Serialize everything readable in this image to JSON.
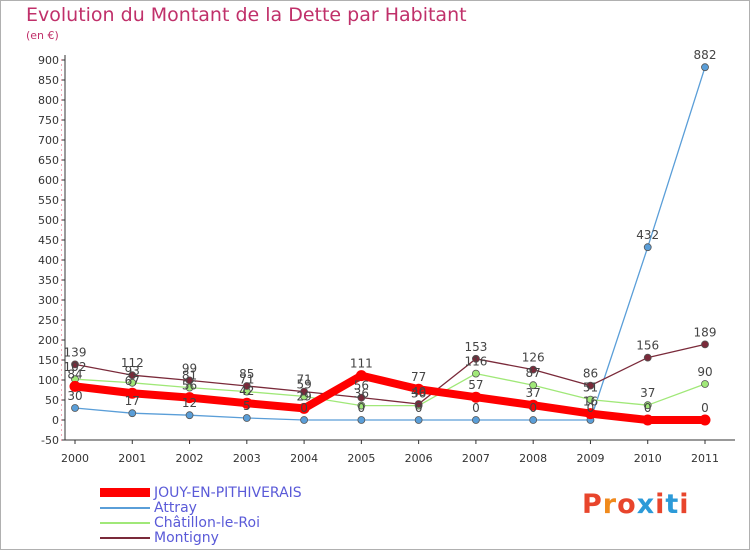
{
  "title": "Evolution du Montant de la Dette par Habitant",
  "unit_label": "(en €)",
  "logo": {
    "text": "Proxiti",
    "colors": [
      "#e8452c",
      "#f08a1c",
      "#e8452c",
      "#2c9ad8",
      "#e8452c",
      "#2c9ad8",
      "#e8452c"
    ]
  },
  "chart_data": {
    "type": "line",
    "x": [
      2000,
      2001,
      2002,
      2003,
      2004,
      2005,
      2006,
      2007,
      2008,
      2009,
      2010,
      2011
    ],
    "ylim": [
      -50,
      900
    ],
    "y_ticks": [
      -50,
      0,
      50,
      100,
      150,
      200,
      250,
      300,
      350,
      400,
      450,
      500,
      550,
      600,
      650,
      700,
      750,
      800,
      850,
      900
    ],
    "grid": false,
    "legend_position": "bottom-left",
    "series": [
      {
        "name": "JOUY-EN-PITHIVERAIS",
        "color": "#ff0000",
        "values": [
          84,
          67,
          56,
          42,
          29,
          111,
          77,
          57,
          37,
          16,
          0,
          0
        ],
        "labels": [
          "84",
          "67",
          "56",
          "42",
          "29",
          "111",
          "77",
          "57",
          "37",
          "16",
          "0",
          "0"
        ]
      },
      {
        "name": "Attray",
        "color": "#5a9ed8",
        "values": [
          30,
          17,
          12,
          5,
          0,
          0,
          0,
          0,
          0,
          0,
          432,
          882
        ],
        "labels": [
          "30",
          "17",
          "12",
          "5",
          "0",
          "0",
          "0",
          "0",
          "0",
          "0",
          "432",
          "882"
        ]
      },
      {
        "name": "Châtillon-le-Roi",
        "color": "#a0e878",
        "values": [
          102,
          93,
          81,
          71,
          59,
          36,
          36,
          116,
          87,
          51,
          37,
          90
        ],
        "labels": [
          "102",
          "93",
          "81",
          "71",
          "59",
          "36",
          "36",
          "116",
          "87",
          "51",
          "37",
          "90"
        ]
      },
      {
        "name": "Montigny",
        "color": "#7a2a3a",
        "values": [
          139,
          112,
          99,
          85,
          71,
          56,
          40,
          153,
          126,
          86,
          156,
          189
        ],
        "labels": [
          "139",
          "112",
          "99",
          "85",
          "71",
          "56",
          "40",
          "153",
          "126",
          "86",
          "156",
          "189"
        ]
      }
    ]
  }
}
